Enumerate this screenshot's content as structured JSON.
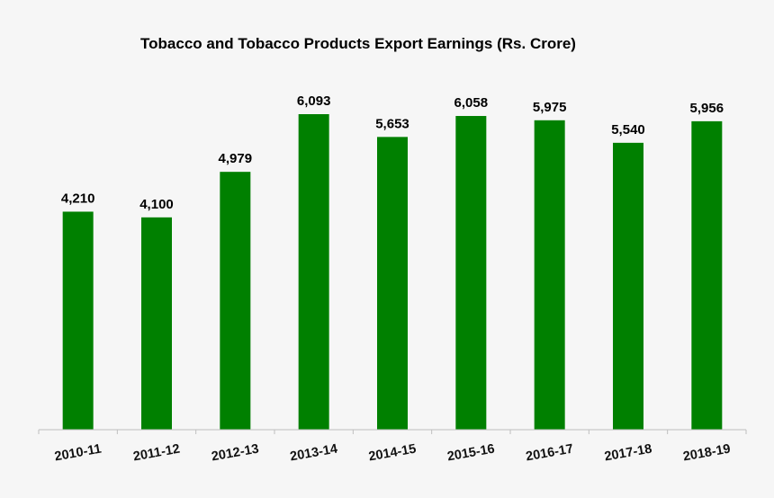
{
  "chart_data": {
    "type": "bar",
    "title": "Tobacco and Tobacco Products Export Earnings (Rs. Crore)",
    "xlabel": "",
    "ylabel": "",
    "categories": [
      "2010-11",
      "2011-12",
      "2012-13",
      "2013-14",
      "2014-15",
      "2015-16",
      "2016-17",
      "2017-18",
      "2018-19"
    ],
    "values": [
      4210,
      4100,
      4979,
      6093,
      5653,
      6058,
      5975,
      5540,
      5956
    ],
    "value_labels": [
      "4,210",
      "4,100",
      "4,979",
      "6,093",
      "5,653",
      "6,058",
      "5,975",
      "5,540",
      "5,956"
    ],
    "ylim": [
      0,
      6093
    ],
    "grid": false,
    "legend": "none",
    "bar_color": "#008000"
  }
}
